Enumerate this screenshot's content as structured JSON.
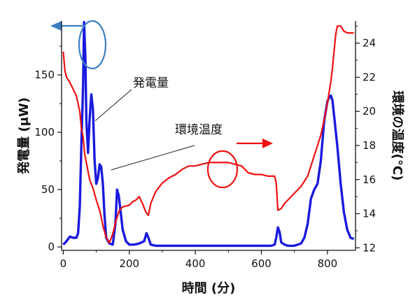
{
  "chart_data": {
    "type": "line",
    "xlabel": "時間 (分)",
    "ylabel_left": "発電量 (μW)",
    "ylabel_right": "環境の温度(°C)",
    "xlim": [
      -5,
      885
    ],
    "ylim_left": [
      -3,
      197
    ],
    "ylim_right": [
      11.85,
      25.3
    ],
    "x_ticks": [
      0,
      200,
      400,
      600,
      800
    ],
    "y_left_ticks": [
      0,
      50,
      100,
      150
    ],
    "y_right_ticks": [
      12,
      14,
      16,
      18,
      20,
      22,
      24
    ],
    "grid": false,
    "colors": {
      "power": "#1a1adf",
      "temperature": "#ee1111",
      "power_arrow": "#3b7fc0",
      "temperature_arrow": "#ee1111"
    },
    "annotations": [
      {
        "text": "発電量",
        "series": "power",
        "points_to_x": 97,
        "points_to_y": 110
      },
      {
        "text": "環境温度",
        "series": "temperature",
        "points_to_x": 395,
        "points_to_y": 16.4
      }
    ],
    "series": [
      {
        "key": "power",
        "axis": "left",
        "x": [
          0,
          10,
          20,
          30,
          40,
          45,
          50,
          55,
          60,
          63,
          67,
          70,
          75,
          80,
          85,
          90,
          95,
          100,
          105,
          110,
          115,
          120,
          125,
          130,
          140,
          150,
          158,
          163,
          168,
          175,
          180,
          190,
          200,
          215,
          230,
          245,
          252,
          258,
          265,
          280,
          300,
          350,
          400,
          450,
          500,
          550,
          600,
          630,
          640,
          645,
          650,
          655,
          660,
          670,
          680,
          700,
          720,
          730,
          740,
          750,
          760,
          770,
          780,
          790,
          800,
          805,
          810,
          815,
          820,
          830,
          840,
          850,
          860,
          870,
          880
        ],
        "y": [
          2,
          5,
          9,
          8,
          8,
          12,
          35,
          90,
          140,
          196,
          165,
          110,
          82,
          112,
          133,
          120,
          75,
          55,
          60,
          72,
          70,
          55,
          28,
          8,
          3,
          2,
          20,
          50,
          45,
          28,
          15,
          5,
          2,
          2,
          3,
          5,
          12,
          8,
          2,
          1,
          1,
          1,
          1,
          1,
          1,
          1,
          1,
          1,
          2,
          8,
          17,
          13,
          4,
          2,
          1,
          1,
          3,
          8,
          20,
          42,
          50,
          55,
          75,
          110,
          127,
          130,
          132,
          128,
          115,
          88,
          55,
          30,
          15,
          8,
          7
        ]
      },
      {
        "key": "temperature",
        "axis": "right",
        "x": [
          0,
          5,
          10,
          20,
          30,
          40,
          50,
          55,
          60,
          65,
          70,
          80,
          90,
          100,
          110,
          115,
          120,
          130,
          140,
          150,
          160,
          170,
          180,
          200,
          210,
          220,
          230,
          240,
          250,
          258,
          265,
          280,
          300,
          320,
          340,
          360,
          380,
          400,
          420,
          440,
          460,
          480,
          500,
          520,
          540,
          560,
          580,
          600,
          620,
          630,
          640,
          645,
          650,
          660,
          670,
          680,
          700,
          720,
          740,
          760,
          780,
          790,
          800,
          810,
          815,
          820,
          825,
          830,
          840,
          850,
          860,
          870,
          880
        ],
        "y": [
          23.5,
          22.4,
          22.0,
          21.7,
          21.3,
          20.9,
          20.0,
          19.0,
          18.5,
          17.5,
          17.0,
          16.0,
          15.5,
          14.8,
          14.2,
          13.8,
          13.3,
          12.6,
          12.3,
          12.8,
          13.6,
          14.2,
          14.4,
          14.5,
          14.7,
          14.8,
          15.0,
          14.6,
          14.1,
          13.9,
          14.6,
          15.3,
          15.8,
          16.1,
          16.3,
          16.6,
          16.8,
          16.8,
          16.9,
          17.0,
          17.0,
          17.0,
          17.0,
          16.9,
          16.8,
          16.4,
          16.3,
          16.3,
          16.2,
          16.2,
          16.2,
          15.8,
          14.2,
          14.3,
          14.6,
          14.8,
          15.2,
          15.6,
          16.2,
          17.4,
          18.6,
          19.5,
          20.5,
          21.7,
          22.5,
          23.5,
          24.5,
          25.0,
          25.0,
          24.7,
          24.6,
          24.6,
          24.6
        ]
      }
    ]
  }
}
